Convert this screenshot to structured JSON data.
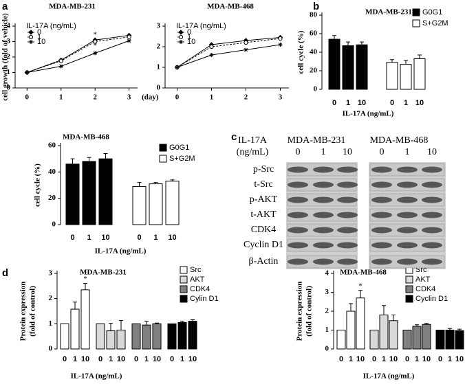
{
  "panels": [
    "a",
    "b",
    "c",
    "d"
  ],
  "chart_data": [
    {
      "type": "line",
      "title": "MDA-MB-231",
      "ylabel": "cell growth (fold of vehicle)",
      "xlabel": "(day)",
      "legend_title": "IL-17A (ng/mL)",
      "x": [
        0,
        1,
        2,
        3
      ],
      "xlim": [
        -0.35,
        3.25
      ],
      "xticks": [
        0,
        1,
        2,
        3
      ],
      "ylim": [
        0,
        4
      ],
      "yticks": [
        0,
        1,
        2,
        3,
        4
      ],
      "annotations": [
        "*",
        "*"
      ],
      "series": [
        {
          "name": "0",
          "color": "#000000",
          "marker": "diamond",
          "line_style": "solid",
          "values": [
            1,
            1.8,
            3.1,
            3.4
          ]
        },
        {
          "name": "1",
          "color": "#000000",
          "marker": "circle",
          "line_style": "dashed",
          "values": [
            1,
            1.75,
            3.0,
            3.3
          ]
        },
        {
          "name": "10",
          "color": "#000000",
          "marker": "star",
          "line_style": "solid",
          "values": [
            1,
            1.4,
            2.25,
            3.05
          ]
        }
      ]
    },
    {
      "type": "line",
      "title": "MDA-MB-468",
      "legend_title": "IL-17A (ng/mL)",
      "x": [
        0,
        1,
        2,
        3
      ],
      "xlim": [
        -0.35,
        3.25
      ],
      "xticks": [
        0,
        1,
        2,
        3
      ],
      "ylim": [
        0,
        3
      ],
      "yticks": [
        0,
        1,
        2,
        3
      ],
      "series": [
        {
          "name": "0",
          "color": "#000000",
          "marker": "diamond",
          "line_style": "solid",
          "values": [
            1,
            2.1,
            2.3,
            2.45
          ]
        },
        {
          "name": "1",
          "color": "#000000",
          "marker": "circle",
          "line_style": "dashed",
          "values": [
            1,
            2.0,
            2.2,
            2.4
          ]
        },
        {
          "name": "10",
          "color": "#000000",
          "marker": "star",
          "line_style": "solid",
          "values": [
            1,
            1.6,
            1.85,
            2.1
          ]
        }
      ]
    },
    {
      "type": "bar",
      "title": "MDA-MB-231",
      "ylabel": "cell cycle (%)",
      "xlabel": "IL-17A (ng/mL)",
      "categories": [
        "0",
        "1",
        "10"
      ],
      "ylim": [
        0,
        80
      ],
      "yticks": [
        0,
        20,
        40,
        60,
        80
      ],
      "series": [
        {
          "name": "G0G1",
          "color": "#000000",
          "values": [
            54,
            47,
            48
          ],
          "errors": [
            4,
            4,
            3
          ]
        },
        {
          "name": "S+G2M",
          "color": "#ffffff",
          "values": [
            29,
            27,
            33
          ],
          "errors": [
            3,
            4,
            4
          ]
        }
      ]
    },
    {
      "type": "bar",
      "title": "MDA-MB-468",
      "ylabel": "cell cycle (%)",
      "xlabel": "IL-17A (ng/mL)",
      "categories": [
        "0",
        "1",
        "10"
      ],
      "ylim": [
        0,
        60
      ],
      "yticks": [
        0,
        20,
        40,
        60
      ],
      "series": [
        {
          "name": "G0G1",
          "color": "#000000",
          "values": [
            46,
            48,
            50
          ],
          "errors": [
            4,
            3,
            4
          ]
        },
        {
          "name": "S+G2M",
          "color": "#ffffff",
          "values": [
            29,
            31,
            33
          ],
          "errors": [
            3,
            1,
            1
          ]
        }
      ]
    },
    {
      "type": "bar",
      "title": "MDA-MB-231",
      "ylabel": [
        "Protein expression",
        "(fold of control)"
      ],
      "xlabel": "IL-17A (ng/mL)",
      "categories": [
        "0",
        "1",
        "10"
      ],
      "ylim": [
        0,
        3
      ],
      "yticks": [
        0,
        1,
        2,
        3
      ],
      "annotations": [
        "*"
      ],
      "series": [
        {
          "name": "Src",
          "color": "#ffffff",
          "values": [
            1,
            1.58,
            2.35
          ],
          "errors": [
            0,
            0.28,
            0.25
          ]
        },
        {
          "name": "AKT",
          "color": "#d9d9d9",
          "values": [
            1,
            0.72,
            0.75
          ],
          "errors": [
            0,
            0.3,
            0.38
          ]
        },
        {
          "name": "CDK4",
          "color": "#808080",
          "values": [
            1,
            0.95,
            1.0
          ],
          "errors": [
            0,
            0.15,
            0.03
          ]
        },
        {
          "name": "Cylin D1",
          "color": "#000000",
          "values": [
            1,
            1.05,
            1.1
          ],
          "errors": [
            0,
            0.05,
            0.06
          ]
        }
      ]
    },
    {
      "type": "bar",
      "title": "MDA-MB-468",
      "ylabel": [
        "Protein expression",
        "(fold of control)"
      ],
      "xlabel": "IL-17A (ng/mL)",
      "categories": [
        "0",
        "1",
        "10"
      ],
      "ylim": [
        0,
        4
      ],
      "yticks": [
        0,
        1,
        2,
        3,
        4
      ],
      "annotations": [
        "*"
      ],
      "series": [
        {
          "name": "Src",
          "color": "#ffffff",
          "values": [
            1,
            2.0,
            2.7
          ],
          "errors": [
            0,
            0.4,
            0.4
          ]
        },
        {
          "name": "AKT",
          "color": "#d9d9d9",
          "values": [
            1,
            1.8,
            1.5
          ],
          "errors": [
            0,
            0.5,
            0.3
          ]
        },
        {
          "name": "CDK4",
          "color": "#808080",
          "values": [
            1,
            1.2,
            1.3
          ],
          "errors": [
            0,
            0.08,
            0.06
          ]
        },
        {
          "name": "Cyclin D1",
          "color": "#000000",
          "values": [
            1,
            1.0,
            0.97
          ],
          "errors": [
            0,
            0.08,
            0.08
          ]
        }
      ]
    }
  ],
  "blot": {
    "dose_label": [
      "IL-17A",
      "(ng/mL)"
    ],
    "cell_lines": [
      "MDA-MB-231",
      "MDA-MB-468"
    ],
    "doses": [
      [
        "0",
        "1",
        "10"
      ],
      [
        "0",
        "1",
        "10"
      ]
    ],
    "rows": [
      "p-Src",
      "t-Src",
      "p-AKT",
      "t-AKT",
      "CDK4",
      "Cyclin D1",
      "β-Actin"
    ]
  }
}
